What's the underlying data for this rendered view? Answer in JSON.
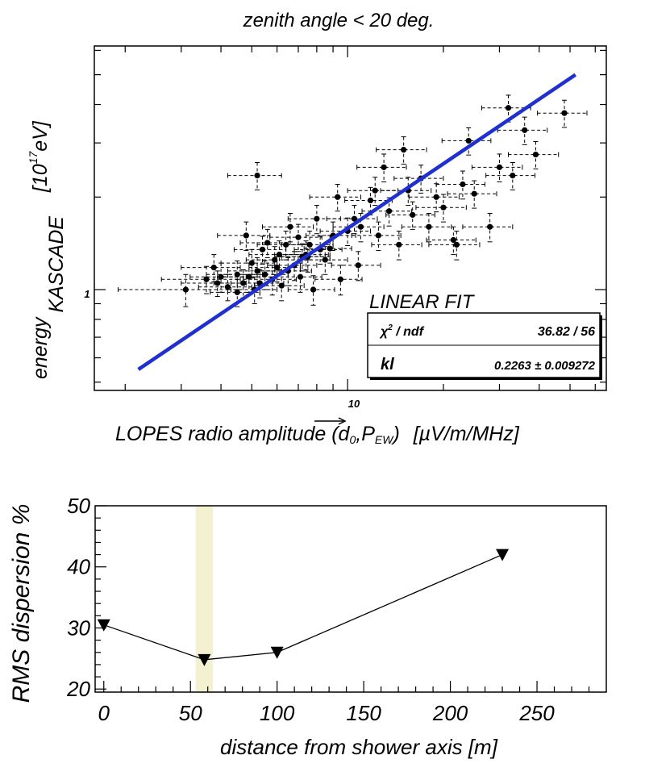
{
  "chart_data": [
    {
      "type": "scatter",
      "title": "zenith angle < 20 deg.",
      "xlabel": "LOPES radio amplitude (d₀,P⃗EW) [µV/m/MHz]",
      "xlabel_parts": {
        "main": "LOPES radio amplitude (d",
        "sub0": "0",
        "comma": ",",
        "vec": "P",
        "vecsub": "EW",
        "close": ")",
        "units": "[µV/m/MHz]"
      },
      "ylabel_energy": "energy",
      "ylabel_sub": "KASCADE",
      "ylabel_units": "[10",
      "ylabel_units_exp": "17",
      "ylabel_units_end": "eV]",
      "xscale": "log",
      "yscale": "log",
      "xlim": [
        1.6,
        65
      ],
      "ylim": [
        0.47,
        6.2
      ],
      "x_tick_label": "10",
      "y_tick_label": "1",
      "points": [
        {
          "x": 3.1,
          "y": 1.0,
          "ex": 1.2,
          "ey": 0.12
        },
        {
          "x": 3.6,
          "y": 1.08,
          "ex": 1.0,
          "ey": 0.11
        },
        {
          "x": 3.9,
          "y": 1.05,
          "ex": 0.9,
          "ey": 0.1
        },
        {
          "x": 4.0,
          "y": 1.1,
          "ex": 0.8,
          "ey": 0.12
        },
        {
          "x": 4.2,
          "y": 1.02,
          "ex": 0.8,
          "ey": 0.1
        },
        {
          "x": 4.5,
          "y": 1.12,
          "ex": 0.9,
          "ey": 0.12
        },
        {
          "x": 4.5,
          "y": 0.98,
          "ex": 0.8,
          "ey": 0.1
        },
        {
          "x": 4.7,
          "y": 1.05,
          "ex": 0.9,
          "ey": 0.11
        },
        {
          "x": 4.9,
          "y": 1.1,
          "ex": 1.0,
          "ey": 0.12
        },
        {
          "x": 5.0,
          "y": 1.22,
          "ex": 1.0,
          "ey": 0.13
        },
        {
          "x": 5.1,
          "y": 1.0,
          "ex": 0.9,
          "ey": 0.1
        },
        {
          "x": 5.2,
          "y": 1.15,
          "ex": 1.0,
          "ey": 0.12
        },
        {
          "x": 5.3,
          "y": 1.05,
          "ex": 1.0,
          "ey": 0.11
        },
        {
          "x": 5.4,
          "y": 1.35,
          "ex": 1.0,
          "ey": 0.14
        },
        {
          "x": 5.5,
          "y": 1.12,
          "ex": 1.0,
          "ey": 0.12
        },
        {
          "x": 5.8,
          "y": 1.08,
          "ex": 1.1,
          "ey": 0.12
        },
        {
          "x": 5.9,
          "y": 1.25,
          "ex": 1.1,
          "ey": 0.13
        },
        {
          "x": 6.0,
          "y": 1.18,
          "ex": 1.1,
          "ey": 0.12
        },
        {
          "x": 6.1,
          "y": 1.3,
          "ex": 1.2,
          "ey": 0.14
        },
        {
          "x": 6.2,
          "y": 1.03,
          "ex": 1.1,
          "ey": 0.11
        },
        {
          "x": 6.4,
          "y": 1.4,
          "ex": 1.2,
          "ey": 0.15
        },
        {
          "x": 6.5,
          "y": 1.15,
          "ex": 1.2,
          "ey": 0.12
        },
        {
          "x": 6.8,
          "y": 1.2,
          "ex": 1.2,
          "ey": 0.13
        },
        {
          "x": 7.0,
          "y": 1.48,
          "ex": 1.3,
          "ey": 0.15
        },
        {
          "x": 7.1,
          "y": 1.1,
          "ex": 1.2,
          "ey": 0.12
        },
        {
          "x": 7.2,
          "y": 1.28,
          "ex": 1.3,
          "ey": 0.13
        },
        {
          "x": 7.4,
          "y": 1.3,
          "ex": 1.3,
          "ey": 0.14
        },
        {
          "x": 7.6,
          "y": 1.4,
          "ex": 1.4,
          "ey": 0.15
        },
        {
          "x": 7.8,
          "y": 1.0,
          "ex": 1.3,
          "ey": 0.11
        },
        {
          "x": 8.0,
          "y": 1.7,
          "ex": 1.5,
          "ey": 0.18
        },
        {
          "x": 8.2,
          "y": 1.35,
          "ex": 1.4,
          "ey": 0.14
        },
        {
          "x": 8.5,
          "y": 1.25,
          "ex": 1.5,
          "ey": 0.13
        },
        {
          "x": 9.0,
          "y": 1.5,
          "ex": 1.6,
          "ey": 0.16
        },
        {
          "x": 9.5,
          "y": 1.08,
          "ex": 1.6,
          "ey": 0.12
        },
        {
          "x": 10.0,
          "y": 1.55,
          "ex": 1.8,
          "ey": 0.16
        },
        {
          "x": 10.5,
          "y": 1.7,
          "ex": 1.9,
          "ey": 0.18
        },
        {
          "x": 11.0,
          "y": 1.6,
          "ex": 2.0,
          "ey": 0.17
        },
        {
          "x": 11.8,
          "y": 1.95,
          "ex": 2.0,
          "ey": 0.2
        },
        {
          "x": 12.5,
          "y": 1.5,
          "ex": 2.2,
          "ey": 0.16
        },
        {
          "x": 13.5,
          "y": 1.8,
          "ex": 2.4,
          "ey": 0.19
        },
        {
          "x": 14.5,
          "y": 1.4,
          "ex": 2.6,
          "ey": 0.15
        },
        {
          "x": 15.5,
          "y": 2.1,
          "ex": 2.8,
          "ey": 0.22
        },
        {
          "x": 16.0,
          "y": 1.75,
          "ex": 2.8,
          "ey": 0.18
        },
        {
          "x": 17.0,
          "y": 2.3,
          "ex": 3.0,
          "ey": 0.24
        },
        {
          "x": 18.0,
          "y": 1.6,
          "ex": 3.2,
          "ey": 0.17
        },
        {
          "x": 19.0,
          "y": 2.0,
          "ex": 3.4,
          "ey": 0.21
        },
        {
          "x": 20.0,
          "y": 1.85,
          "ex": 3.6,
          "ey": 0.19
        },
        {
          "x": 21.5,
          "y": 1.45,
          "ex": 3.8,
          "ey": 0.15
        },
        {
          "x": 23.0,
          "y": 2.2,
          "ex": 4.0,
          "ey": 0.23
        },
        {
          "x": 25.0,
          "y": 2.05,
          "ex": 4.4,
          "ey": 0.21
        },
        {
          "x": 28.0,
          "y": 1.6,
          "ex": 5.0,
          "ey": 0.17
        },
        {
          "x": 30.0,
          "y": 2.5,
          "ex": 5.4,
          "ey": 0.26
        },
        {
          "x": 33.0,
          "y": 2.35,
          "ex": 5.8,
          "ey": 0.24
        },
        {
          "x": 36.0,
          "y": 3.3,
          "ex": 6.4,
          "ey": 0.34
        },
        {
          "x": 39.0,
          "y": 2.75,
          "ex": 7.0,
          "ey": 0.28
        },
        {
          "x": 48.0,
          "y": 3.75,
          "ex": 8.5,
          "ey": 0.38
        },
        {
          "x": 9.3,
          "y": 2.0,
          "ex": 1.7,
          "ey": 0.2
        },
        {
          "x": 12.2,
          "y": 2.1,
          "ex": 2.2,
          "ey": 0.22
        },
        {
          "x": 7.5,
          "y": 1.28,
          "ex": 1.3,
          "ey": 0.14
        },
        {
          "x": 5.6,
          "y": 1.42,
          "ex": 1.0,
          "ey": 0.15
        },
        {
          "x": 4.8,
          "y": 1.5,
          "ex": 0.9,
          "ey": 0.16
        },
        {
          "x": 3.8,
          "y": 1.18,
          "ex": 0.8,
          "ey": 0.12
        },
        {
          "x": 6.6,
          "y": 1.6,
          "ex": 1.2,
          "ey": 0.17
        },
        {
          "x": 8.8,
          "y": 1.36,
          "ex": 1.5,
          "ey": 0.14
        },
        {
          "x": 10.8,
          "y": 1.2,
          "ex": 1.9,
          "ey": 0.13
        },
        {
          "x": 13.0,
          "y": 2.5,
          "ex": 2.3,
          "ey": 0.26
        },
        {
          "x": 15.0,
          "y": 2.85,
          "ex": 2.7,
          "ey": 0.29
        },
        {
          "x": 24.0,
          "y": 3.05,
          "ex": 4.2,
          "ey": 0.31
        },
        {
          "x": 5.2,
          "y": 2.35,
          "ex": 1.0,
          "ey": 0.24
        },
        {
          "x": 32.0,
          "y": 3.9,
          "ex": 5.6,
          "ey": 0.39
        },
        {
          "x": 22.0,
          "y": 1.4,
          "ex": 4.0,
          "ey": 0.15
        }
      ],
      "fit": {
        "x": [
          2.2,
          52
        ],
        "y": [
          0.55,
          5.0
        ]
      },
      "stats": {
        "title": "LINEAR FIT",
        "row1_label_chi": "χ",
        "row1_label_sup": "2",
        "row1_label_rest": " / ndf",
        "row1_value": "36.82 / 56",
        "row2_label": "kl",
        "row2_value": "0.2263 ± 0.009272"
      }
    },
    {
      "type": "line",
      "xlabel": "distance from shower axis [m]",
      "ylabel": "RMS dispersion %",
      "x": [
        0,
        58,
        100,
        230
      ],
      "y": [
        30.5,
        24.8,
        26.0,
        42.0
      ],
      "xlim": [
        -5,
        290
      ],
      "ylim": [
        19.5,
        50
      ],
      "x_ticks": [
        "0",
        "50",
        "100",
        "150",
        "200",
        "250"
      ],
      "y_ticks": [
        "20",
        "30",
        "40",
        "50"
      ],
      "band": [
        53,
        63
      ],
      "band_color": "#f3f1cf",
      "marker": "triangle-down"
    }
  ]
}
